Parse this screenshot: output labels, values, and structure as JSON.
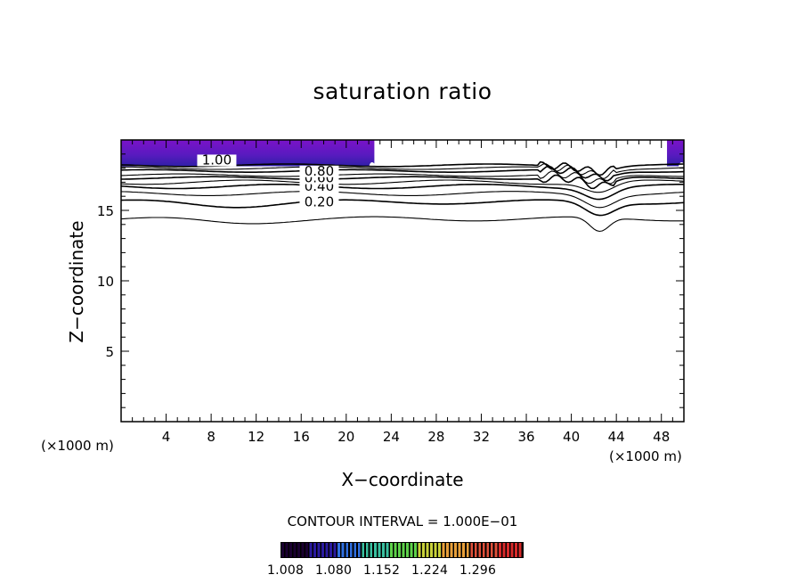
{
  "chart_data": {
    "type": "contour",
    "title": "saturation ratio",
    "xlabel": "X−coordinate",
    "ylabel": "Z−coordinate",
    "x_unit_left": "(×1000 m)",
    "x_unit_right": "(×1000 m)",
    "xlim": [
      0,
      50
    ],
    "ylim": [
      0,
      20
    ],
    "x_ticks": [
      4,
      8,
      12,
      16,
      20,
      24,
      28,
      32,
      36,
      40,
      44,
      48
    ],
    "y_ticks": [
      5,
      10,
      15
    ],
    "contour_interval_text": "CONTOUR INTERVAL = 1.000E−01",
    "contour_labels": [
      "1.00",
      "0.80",
      "0.60",
      "0.40",
      "0.20"
    ],
    "contour_levels": [
      {
        "level": 0.1,
        "z": 14.4,
        "label": ""
      },
      {
        "level": 0.2,
        "z": 15.6,
        "label": "0.20"
      },
      {
        "level": 0.3,
        "z": 16.2,
        "label": ""
      },
      {
        "level": 0.4,
        "z": 16.7,
        "label": "0.40"
      },
      {
        "level": 0.5,
        "z": 17.0,
        "label": ""
      },
      {
        "level": 0.6,
        "z": 17.3,
        "label": "0.60"
      },
      {
        "level": 0.7,
        "z": 17.5,
        "label": ""
      },
      {
        "level": 0.8,
        "z": 17.8,
        "label": "0.80"
      },
      {
        "level": 0.9,
        "z": 18.0,
        "label": ""
      },
      {
        "level": 1.0,
        "z": 18.2,
        "label": "1.00"
      }
    ],
    "dip_center_x": 42.5,
    "dip_depth_z": 1.0,
    "colorbar": {
      "ticks": [
        "1.008",
        "1.080",
        "1.152",
        "1.224",
        "1.296"
      ],
      "colors": [
        "#1a0030",
        "#2a1aa0",
        "#2f6fe0",
        "#39c0a0",
        "#5ed24a",
        "#c9d23a",
        "#e8a03a",
        "#e0503a",
        "#d82a2a"
      ]
    },
    "fill_color": "#6a1ab8"
  }
}
